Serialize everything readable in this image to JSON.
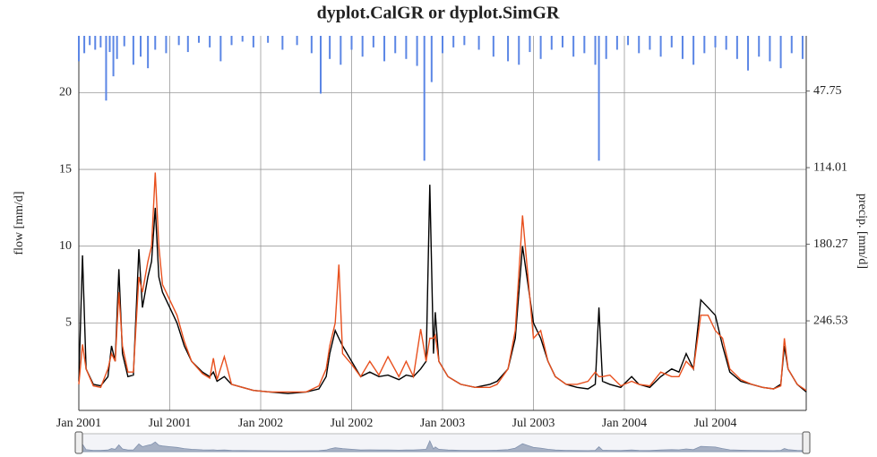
{
  "chart_data": {
    "type": "line",
    "title": "dyplot.CalGR or dyplot.SimGR",
    "y_label": "flow [mm/d]",
    "y2_label": "precip. [mm/d]",
    "grid": true,
    "xlim": [
      2001,
      2005
    ],
    "xticks": [
      {
        "value": 2001,
        "label": "Jan 2001"
      },
      {
        "value": 2001.5,
        "label": "Jul 2001"
      },
      {
        "value": 2002,
        "label": "Jan 2002"
      },
      {
        "value": 2002.5,
        "label": "Jul 2002"
      },
      {
        "value": 2003,
        "label": "Jan 2003"
      },
      {
        "value": 2003.5,
        "label": "Jul 2003"
      },
      {
        "value": 2004,
        "label": "Jan 2004"
      },
      {
        "value": 2004.5,
        "label": "Jul 2004"
      }
    ],
    "ylim": [
      -0.7,
      23.7
    ],
    "yticks": [
      5,
      10,
      15,
      20
    ],
    "y2lim": [
      0,
      324
    ],
    "y2ticks": [
      47.75,
      114.01,
      180.27,
      246.53
    ],
    "x": [
      2001.0,
      2001.02,
      2001.04,
      2001.08,
      2001.12,
      2001.16,
      2001.18,
      2001.2,
      2001.22,
      2001.24,
      2001.27,
      2001.3,
      2001.33,
      2001.35,
      2001.38,
      2001.4,
      2001.42,
      2001.44,
      2001.46,
      2001.5,
      2001.54,
      2001.58,
      2001.62,
      2001.68,
      2001.72,
      2001.74,
      2001.76,
      2001.8,
      2001.84,
      2001.9,
      2001.96,
      2002.05,
      2002.15,
      2002.25,
      2002.32,
      2002.36,
      2002.38,
      2002.41,
      2002.43,
      2002.45,
      2002.5,
      2002.55,
      2002.6,
      2002.65,
      2002.7,
      2002.76,
      2002.8,
      2002.84,
      2002.88,
      2002.91,
      2002.93,
      2002.95,
      2002.96,
      2002.98,
      2003.03,
      2003.1,
      2003.18,
      2003.26,
      2003.3,
      2003.36,
      2003.4,
      2003.44,
      2003.47,
      2003.5,
      2003.54,
      2003.58,
      2003.62,
      2003.68,
      2003.74,
      2003.8,
      2003.84,
      2003.86,
      2003.88,
      2003.92,
      2003.98,
      2004.04,
      2004.08,
      2004.14,
      2004.2,
      2004.26,
      2004.3,
      2004.34,
      2004.38,
      2004.42,
      2004.46,
      2004.5,
      2004.54,
      2004.58,
      2004.64,
      2004.7,
      2004.76,
      2004.82,
      2004.86,
      2004.88,
      2004.9,
      2004.95,
      2005.0
    ],
    "series": [
      {
        "color": "#000000",
        "values": [
          1.2,
          9.4,
          2.0,
          1.0,
          0.9,
          1.5,
          3.5,
          2.5,
          8.5,
          3.0,
          1.5,
          1.6,
          9.8,
          6,
          8,
          9,
          12.5,
          8,
          7,
          6,
          5,
          3.5,
          2.5,
          1.8,
          1.5,
          1.8,
          1.2,
          1.5,
          1.0,
          0.8,
          0.6,
          0.5,
          0.4,
          0.5,
          0.7,
          1.5,
          3.0,
          4.5,
          4.0,
          3.5,
          2.5,
          1.5,
          1.8,
          1.5,
          1.6,
          1.3,
          1.6,
          1.5,
          2.0,
          2.5,
          14.0,
          3.0,
          5.7,
          2.5,
          1.5,
          1.0,
          0.8,
          1.0,
          1.2,
          2.0,
          4.0,
          10.0,
          7.5,
          5.0,
          4.0,
          2.5,
          1.5,
          1.0,
          0.8,
          0.7,
          1.0,
          6.0,
          1.2,
          1.0,
          0.8,
          1.5,
          1.0,
          0.8,
          1.5,
          2.0,
          1.8,
          3.0,
          2.0,
          6.5,
          6.0,
          5.5,
          3.5,
          1.8,
          1.2,
          1.0,
          0.8,
          0.7,
          1.0,
          3.5,
          2.0,
          1.0,
          0.5
        ]
      },
      {
        "color": "#e8501e",
        "values": [
          1.0,
          3.6,
          2.0,
          0.9,
          0.8,
          2.0,
          3.0,
          2.5,
          7.0,
          3.5,
          1.8,
          1.8,
          8.0,
          7,
          9,
          10,
          14.8,
          10,
          7.5,
          6.5,
          5.5,
          3.8,
          2.5,
          1.7,
          1.4,
          2.7,
          1.3,
          2.8,
          1.0,
          0.8,
          0.6,
          0.5,
          0.5,
          0.5,
          0.9,
          2.0,
          3.5,
          5.0,
          8.8,
          3.0,
          2.3,
          1.5,
          2.5,
          1.6,
          2.8,
          1.5,
          2.5,
          1.5,
          4.6,
          2.5,
          4.0,
          4.0,
          4.2,
          2.5,
          1.5,
          1.0,
          0.8,
          0.8,
          1.0,
          2.0,
          4.5,
          12.0,
          8.0,
          4.0,
          4.5,
          2.5,
          1.5,
          1.0,
          1.0,
          1.2,
          1.8,
          1.5,
          1.5,
          1.6,
          0.9,
          1.2,
          1.0,
          0.9,
          1.8,
          1.5,
          1.5,
          2.5,
          2.0,
          5.5,
          5.5,
          4.5,
          4.0,
          2.0,
          1.3,
          1.0,
          0.8,
          0.7,
          0.9,
          4.0,
          2.0,
          1.0,
          0.6
        ]
      },
      {
        "type": "bar",
        "axis": "y2",
        "color": "#5b86e5",
        "x": [
          2001.0,
          2001.03,
          2001.06,
          2001.09,
          2001.12,
          2001.15,
          2001.17,
          2001.19,
          2001.21,
          2001.25,
          2001.3,
          2001.34,
          2001.38,
          2001.42,
          2001.48,
          2001.55,
          2001.6,
          2001.66,
          2001.72,
          2001.78,
          2001.84,
          2001.9,
          2001.96,
          2002.04,
          2002.12,
          2002.2,
          2002.28,
          2002.33,
          2002.38,
          2002.44,
          2002.5,
          2002.56,
          2002.62,
          2002.68,
          2002.74,
          2002.8,
          2002.86,
          2002.9,
          2002.94,
          2003.0,
          2003.06,
          2003.12,
          2003.2,
          2003.28,
          2003.36,
          2003.42,
          2003.48,
          2003.54,
          2003.6,
          2003.66,
          2003.72,
          2003.78,
          2003.84,
          2003.86,
          2003.9,
          2003.96,
          2004.02,
          2004.08,
          2004.14,
          2004.2,
          2004.26,
          2004.32,
          2004.38,
          2004.44,
          2004.5,
          2004.56,
          2004.62,
          2004.68,
          2004.74,
          2004.8,
          2004.86,
          2004.92,
          2004.98
        ],
        "values": [
          22,
          15,
          8,
          12,
          10,
          56,
          14,
          35,
          20,
          9,
          25,
          18,
          28,
          12,
          15,
          8,
          14,
          6,
          10,
          22,
          8,
          5,
          10,
          6,
          12,
          8,
          15,
          50,
          20,
          25,
          12,
          18,
          10,
          22,
          15,
          20,
          26,
          108,
          40,
          15,
          10,
          8,
          12,
          18,
          22,
          25,
          14,
          20,
          12,
          10,
          18,
          15,
          25,
          108,
          20,
          12,
          8,
          15,
          12,
          18,
          10,
          20,
          25,
          15,
          10,
          12,
          20,
          30,
          18,
          22,
          28,
          15,
          20
        ]
      }
    ]
  }
}
